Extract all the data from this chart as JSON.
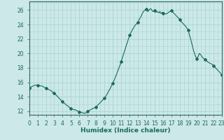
{
  "xlabel": "Humidex (Indice chaleur)",
  "bg_color": "#cce8e8",
  "grid_color": "#aad4d4",
  "line_color": "#1a6b5a",
  "marker_color": "#1a6b5a",
  "x_values": [
    0,
    0.16,
    0.33,
    0.5,
    0.66,
    0.83,
    1,
    1.16,
    1.33,
    1.5,
    1.66,
    1.83,
    2,
    2.16,
    2.33,
    2.5,
    2.66,
    2.83,
    3,
    3.16,
    3.33,
    3.5,
    3.66,
    3.83,
    4,
    4.16,
    4.33,
    4.5,
    4.66,
    4.83,
    5,
    5.16,
    5.33,
    5.5,
    5.66,
    5.83,
    6,
    6.16,
    6.33,
    6.5,
    6.66,
    6.83,
    7,
    7.16,
    7.33,
    7.5,
    7.66,
    7.83,
    8,
    8.16,
    8.33,
    8.5,
    8.66,
    8.83,
    9,
    9.16,
    9.33,
    9.5,
    9.66,
    9.83,
    10,
    10.16,
    10.33,
    10.5,
    10.66,
    10.83,
    11,
    11.16,
    11.33,
    11.5,
    11.66,
    11.83,
    12,
    12.16,
    12.33,
    12.5,
    12.66,
    12.83,
    13,
    13.05,
    13.1,
    13.15,
    13.2,
    13.25,
    13.3,
    13.35,
    13.4,
    13.45,
    13.5,
    13.55,
    13.6,
    13.65,
    13.7,
    13.75,
    13.8,
    13.85,
    13.9,
    13.95,
    14,
    14.05,
    14.1,
    14.15,
    14.2,
    14.25,
    14.3,
    14.35,
    14.4,
    14.45,
    14.5,
    14.55,
    14.6,
    14.65,
    14.7,
    14.75,
    14.8,
    14.85,
    14.9,
    14.95,
    15,
    15.05,
    15.1,
    15.15,
    15.2,
    15.25,
    15.3,
    15.35,
    15.4,
    15.45,
    15.5,
    15.55,
    15.6,
    15.65,
    15.7,
    15.75,
    15.8,
    15.85,
    15.9,
    15.95,
    16,
    16.16,
    16.33,
    16.5,
    16.66,
    16.83,
    17,
    17.16,
    17.33,
    17.5,
    17.66,
    17.83,
    18,
    18.16,
    18.33,
    18.5,
    18.66,
    18.83,
    19,
    19.16,
    19.33,
    19.5,
    19.66,
    19.83,
    20,
    20.16,
    20.33,
    20.5,
    20.66,
    20.83,
    21,
    21.16,
    21.33,
    21.5,
    21.66,
    21.83,
    22,
    22.16,
    22.33,
    22.5,
    22.66,
    22.83,
    23
  ],
  "y_values": [
    15.2,
    15.3,
    15.4,
    15.5,
    15.6,
    15.6,
    15.6,
    15.6,
    15.5,
    15.5,
    15.4,
    15.3,
    15.2,
    15.1,
    15.0,
    14.9,
    14.8,
    14.6,
    14.5,
    14.3,
    14.1,
    13.9,
    13.7,
    13.5,
    13.3,
    13.1,
    13.0,
    12.8,
    12.7,
    12.5,
    12.4,
    12.3,
    12.2,
    12.2,
    12.1,
    12.0,
    11.9,
    11.85,
    11.8,
    11.75,
    11.7,
    11.8,
    12.0,
    12.1,
    12.2,
    12.3,
    12.4,
    12.5,
    12.6,
    12.8,
    13.0,
    13.2,
    13.4,
    13.6,
    13.8,
    14.1,
    14.4,
    14.8,
    15.1,
    15.5,
    15.9,
    16.3,
    16.8,
    17.3,
    17.8,
    18.3,
    18.9,
    19.5,
    20.1,
    20.7,
    21.3,
    21.9,
    22.5,
    22.9,
    23.3,
    23.6,
    23.9,
    24.1,
    24.3,
    24.45,
    24.6,
    24.7,
    24.8,
    24.9,
    25.0,
    25.1,
    25.2,
    25.35,
    25.5,
    25.6,
    25.7,
    25.8,
    25.85,
    25.9,
    25.95,
    26.0,
    26.05,
    26.1,
    26.1,
    26.0,
    25.95,
    25.85,
    25.8,
    25.9,
    26.0,
    26.05,
    26.1,
    26.15,
    26.2,
    26.15,
    26.1,
    26.0,
    25.9,
    25.85,
    25.8,
    25.85,
    25.9,
    25.95,
    25.9,
    25.85,
    25.8,
    25.75,
    25.7,
    25.75,
    25.8,
    25.75,
    25.7,
    25.65,
    25.6,
    25.7,
    25.8,
    25.75,
    25.6,
    25.55,
    25.5,
    25.6,
    25.7,
    25.65,
    25.6,
    25.5,
    25.45,
    25.55,
    25.7,
    25.8,
    25.9,
    25.7,
    25.5,
    25.3,
    25.1,
    24.9,
    24.7,
    24.4,
    24.2,
    24.0,
    23.8,
    23.5,
    23.2,
    22.5,
    21.8,
    21.0,
    20.3,
    19.7,
    19.3,
    19.5,
    20.0,
    19.8,
    19.5,
    19.3,
    19.2,
    19.0,
    18.8,
    18.7,
    18.6,
    18.5,
    18.3,
    18.1,
    17.9,
    17.7,
    17.5,
    17.3,
    17.0
  ],
  "xlim": [
    0,
    23
  ],
  "ylim": [
    11.5,
    27.2
  ],
  "yticks": [
    12,
    14,
    16,
    18,
    20,
    22,
    24,
    26
  ],
  "xticks": [
    0,
    1,
    2,
    3,
    4,
    5,
    6,
    7,
    8,
    9,
    10,
    11,
    12,
    13,
    14,
    15,
    16,
    17,
    18,
    19,
    20,
    21,
    22,
    23
  ],
  "figsize": [
    3.2,
    2.0
  ],
  "dpi": 100
}
